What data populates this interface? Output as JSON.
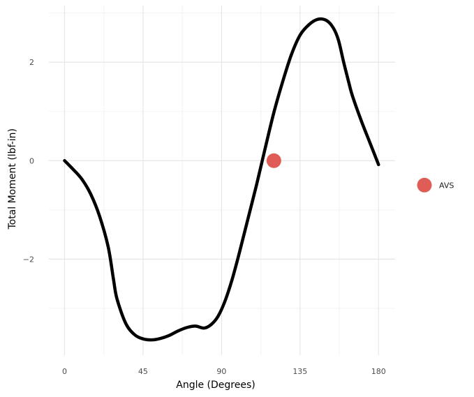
{
  "chart_data": {
    "type": "line",
    "title": "",
    "xlabel": "Angle (Degrees)",
    "ylabel": "Total Moment (lbf-in)",
    "xlim": [
      -9,
      189.5
    ],
    "ylim": [
      -3.95,
      3.15
    ],
    "x_ticks": [
      0,
      45,
      90,
      135,
      180
    ],
    "x_tick_labels": [
      "0",
      "45",
      "90",
      "135",
      "180"
    ],
    "y_ticks": [
      -2,
      0,
      2
    ],
    "y_tick_labels": [
      "−2",
      "0",
      "2"
    ],
    "grid": true,
    "legend_position": "right",
    "series": [
      {
        "color": "#000000",
        "x": [
          0,
          5,
          10,
          15,
          20,
          25,
          28,
          30,
          35,
          40,
          45,
          50,
          55,
          60,
          65,
          70,
          75,
          80,
          84,
          88,
          92,
          96,
          100,
          105,
          110,
          115,
          120,
          125,
          130,
          135,
          140,
          145,
          150,
          154,
          157,
          160,
          163,
          165,
          170,
          175,
          180
        ],
        "y": [
          0,
          -0.18,
          -0.38,
          -0.68,
          -1.12,
          -1.75,
          -2.4,
          -2.8,
          -3.3,
          -3.53,
          -3.62,
          -3.64,
          -3.61,
          -3.55,
          -3.46,
          -3.39,
          -3.36,
          -3.4,
          -3.33,
          -3.16,
          -2.85,
          -2.42,
          -1.9,
          -1.2,
          -0.5,
          0.25,
          0.98,
          1.6,
          2.15,
          2.55,
          2.76,
          2.87,
          2.85,
          2.7,
          2.45,
          2.0,
          1.58,
          1.32,
          0.82,
          0.37,
          -0.08
        ]
      }
    ],
    "points": [
      {
        "name": "AVS",
        "x": 120,
        "y": 0,
        "color": "#e05d57"
      }
    ]
  }
}
